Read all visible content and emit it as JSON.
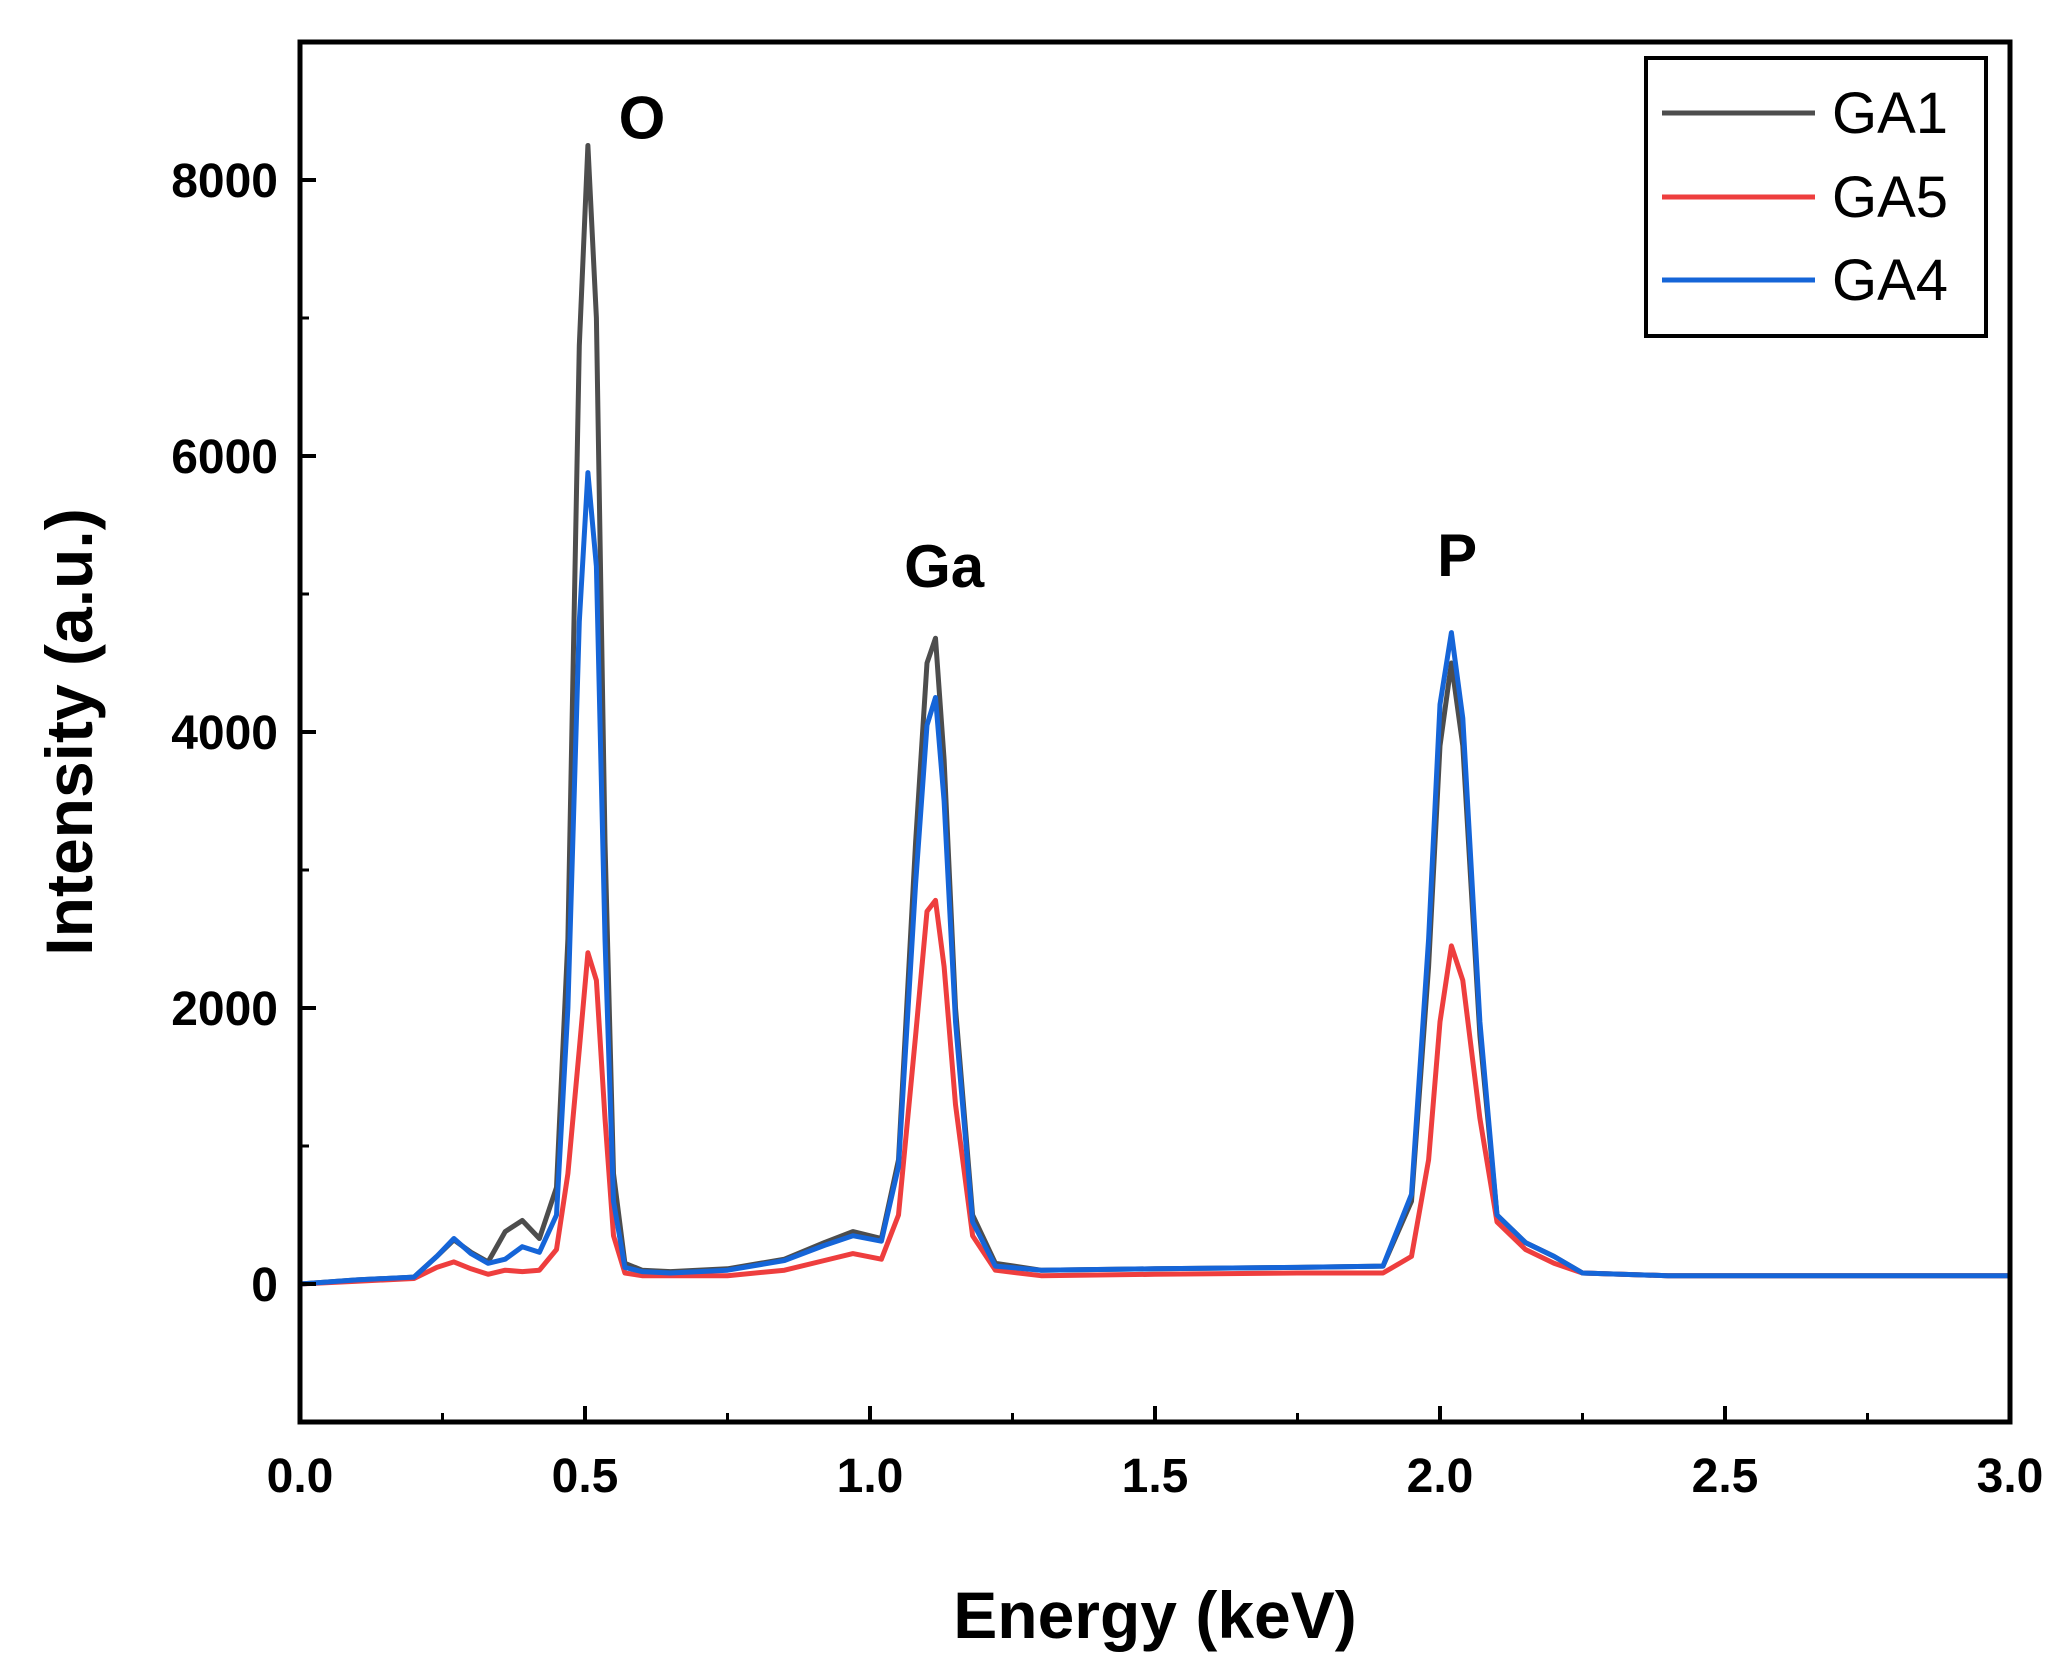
{
  "chart_data": {
    "type": "line",
    "title": "",
    "xlabel": "Energy (keV)",
    "ylabel": "Intensity (a.u.)",
    "xlim": [
      0,
      3.0
    ],
    "ylim": [
      -1000,
      9000
    ],
    "xticks": [
      0.0,
      0.5,
      1.0,
      1.5,
      2.0,
      2.5,
      3.0
    ],
    "xtick_labels": [
      "0.0",
      "0.5",
      "1.0",
      "1.5",
      "2.0",
      "2.5",
      "3.0"
    ],
    "yticks": [
      0,
      2000,
      4000,
      6000,
      8000
    ],
    "ytick_labels": [
      "0",
      "2000",
      "4000",
      "6000",
      "8000"
    ],
    "grid": false,
    "legend_position": "top-right",
    "annotations": [
      {
        "text": "O",
        "x": 0.6,
        "y": 8300
      },
      {
        "text": "Ga",
        "x": 1.13,
        "y": 5050
      },
      {
        "text": "P",
        "x": 2.03,
        "y": 5130
      }
    ],
    "series": [
      {
        "name": "GA1",
        "color": "#4d4d4d",
        "x": [
          0.0,
          0.1,
          0.2,
          0.24,
          0.27,
          0.3,
          0.33,
          0.36,
          0.39,
          0.42,
          0.45,
          0.47,
          0.49,
          0.505,
          0.52,
          0.535,
          0.55,
          0.57,
          0.6,
          0.65,
          0.75,
          0.85,
          0.92,
          0.97,
          1.02,
          1.05,
          1.08,
          1.1,
          1.115,
          1.13,
          1.15,
          1.18,
          1.22,
          1.3,
          1.5,
          1.75,
          1.9,
          1.95,
          1.98,
          2.0,
          2.02,
          2.04,
          2.07,
          2.1,
          2.15,
          2.2,
          2.25,
          2.4,
          2.7,
          3.0
        ],
        "y": [
          0,
          30,
          50,
          200,
          320,
          230,
          160,
          380,
          460,
          330,
          700,
          2500,
          6800,
          8250,
          7000,
          3200,
          800,
          150,
          100,
          90,
          110,
          180,
          300,
          380,
          330,
          900,
          3200,
          4500,
          4680,
          3800,
          2000,
          500,
          150,
          100,
          110,
          120,
          130,
          600,
          2300,
          3900,
          4500,
          3900,
          1800,
          500,
          300,
          200,
          80,
          60,
          60,
          60
        ]
      },
      {
        "name": "GA5",
        "color": "#ee3e3e",
        "x": [
          0.0,
          0.1,
          0.2,
          0.24,
          0.27,
          0.3,
          0.33,
          0.36,
          0.39,
          0.42,
          0.45,
          0.47,
          0.49,
          0.505,
          0.52,
          0.535,
          0.55,
          0.57,
          0.6,
          0.65,
          0.75,
          0.85,
          0.92,
          0.97,
          1.02,
          1.05,
          1.08,
          1.1,
          1.115,
          1.13,
          1.15,
          1.18,
          1.22,
          1.3,
          1.5,
          1.75,
          1.9,
          1.95,
          1.98,
          2.0,
          2.02,
          2.04,
          2.07,
          2.1,
          2.15,
          2.2,
          2.25,
          2.4,
          2.7,
          3.0
        ],
        "y": [
          0,
          20,
          40,
          120,
          160,
          110,
          70,
          100,
          90,
          100,
          250,
          800,
          1700,
          2400,
          2200,
          1200,
          350,
          80,
          60,
          60,
          60,
          100,
          170,
          220,
          180,
          500,
          1800,
          2700,
          2780,
          2300,
          1300,
          350,
          100,
          60,
          70,
          80,
          80,
          200,
          900,
          1900,
          2450,
          2200,
          1200,
          450,
          250,
          150,
          80,
          60,
          60,
          60
        ]
      },
      {
        "name": "GA4",
        "color": "#1565d8",
        "x": [
          0.0,
          0.1,
          0.2,
          0.24,
          0.27,
          0.3,
          0.33,
          0.36,
          0.39,
          0.42,
          0.45,
          0.47,
          0.49,
          0.505,
          0.52,
          0.535,
          0.55,
          0.57,
          0.6,
          0.65,
          0.75,
          0.85,
          0.92,
          0.97,
          1.02,
          1.05,
          1.08,
          1.1,
          1.115,
          1.13,
          1.15,
          1.18,
          1.22,
          1.3,
          1.5,
          1.75,
          1.9,
          1.95,
          1.98,
          2.0,
          2.02,
          2.04,
          2.07,
          2.1,
          2.15,
          2.2,
          2.25,
          2.4,
          2.7,
          3.0
        ],
        "y": [
          0,
          30,
          50,
          200,
          330,
          220,
          150,
          180,
          270,
          230,
          500,
          2000,
          4800,
          5880,
          5200,
          2500,
          600,
          120,
          90,
          80,
          100,
          170,
          280,
          350,
          310,
          850,
          2900,
          4050,
          4250,
          3500,
          1900,
          450,
          130,
          100,
          110,
          120,
          130,
          650,
          2500,
          4200,
          4720,
          4100,
          1900,
          500,
          300,
          200,
          80,
          60,
          60,
          60
        ]
      }
    ]
  }
}
